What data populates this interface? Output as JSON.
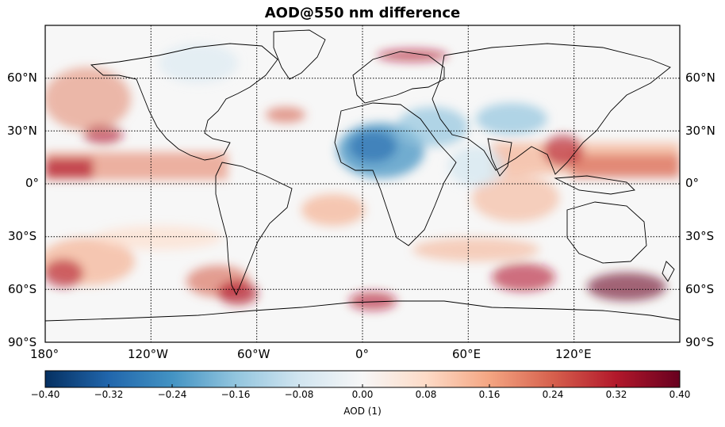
{
  "title": "AOD@550 nm difference",
  "lon_ticks": [
    "180°",
    "120°W",
    "60°W",
    "0°",
    "60°E",
    "120°E"
  ],
  "lat_ticks": [
    "60°N",
    "30°N",
    "0°",
    "30°S",
    "60°S",
    "90°S"
  ],
  "colorbar": {
    "label": "AOD (1)",
    "min": -0.4,
    "max": 0.4,
    "ticks": [
      "-0.40",
      "-0.32",
      "-0.24",
      "-0.16",
      "-0.08",
      "0.00",
      "0.08",
      "0.16",
      "0.24",
      "0.32",
      "0.40"
    ],
    "colormap": "RdBu_r"
  },
  "colors": {
    "strong_negative": "#053061",
    "negative": "#4393c3",
    "neutral": "#f7f7f7",
    "positive": "#f4a582",
    "strong_positive": "#67001f"
  }
}
